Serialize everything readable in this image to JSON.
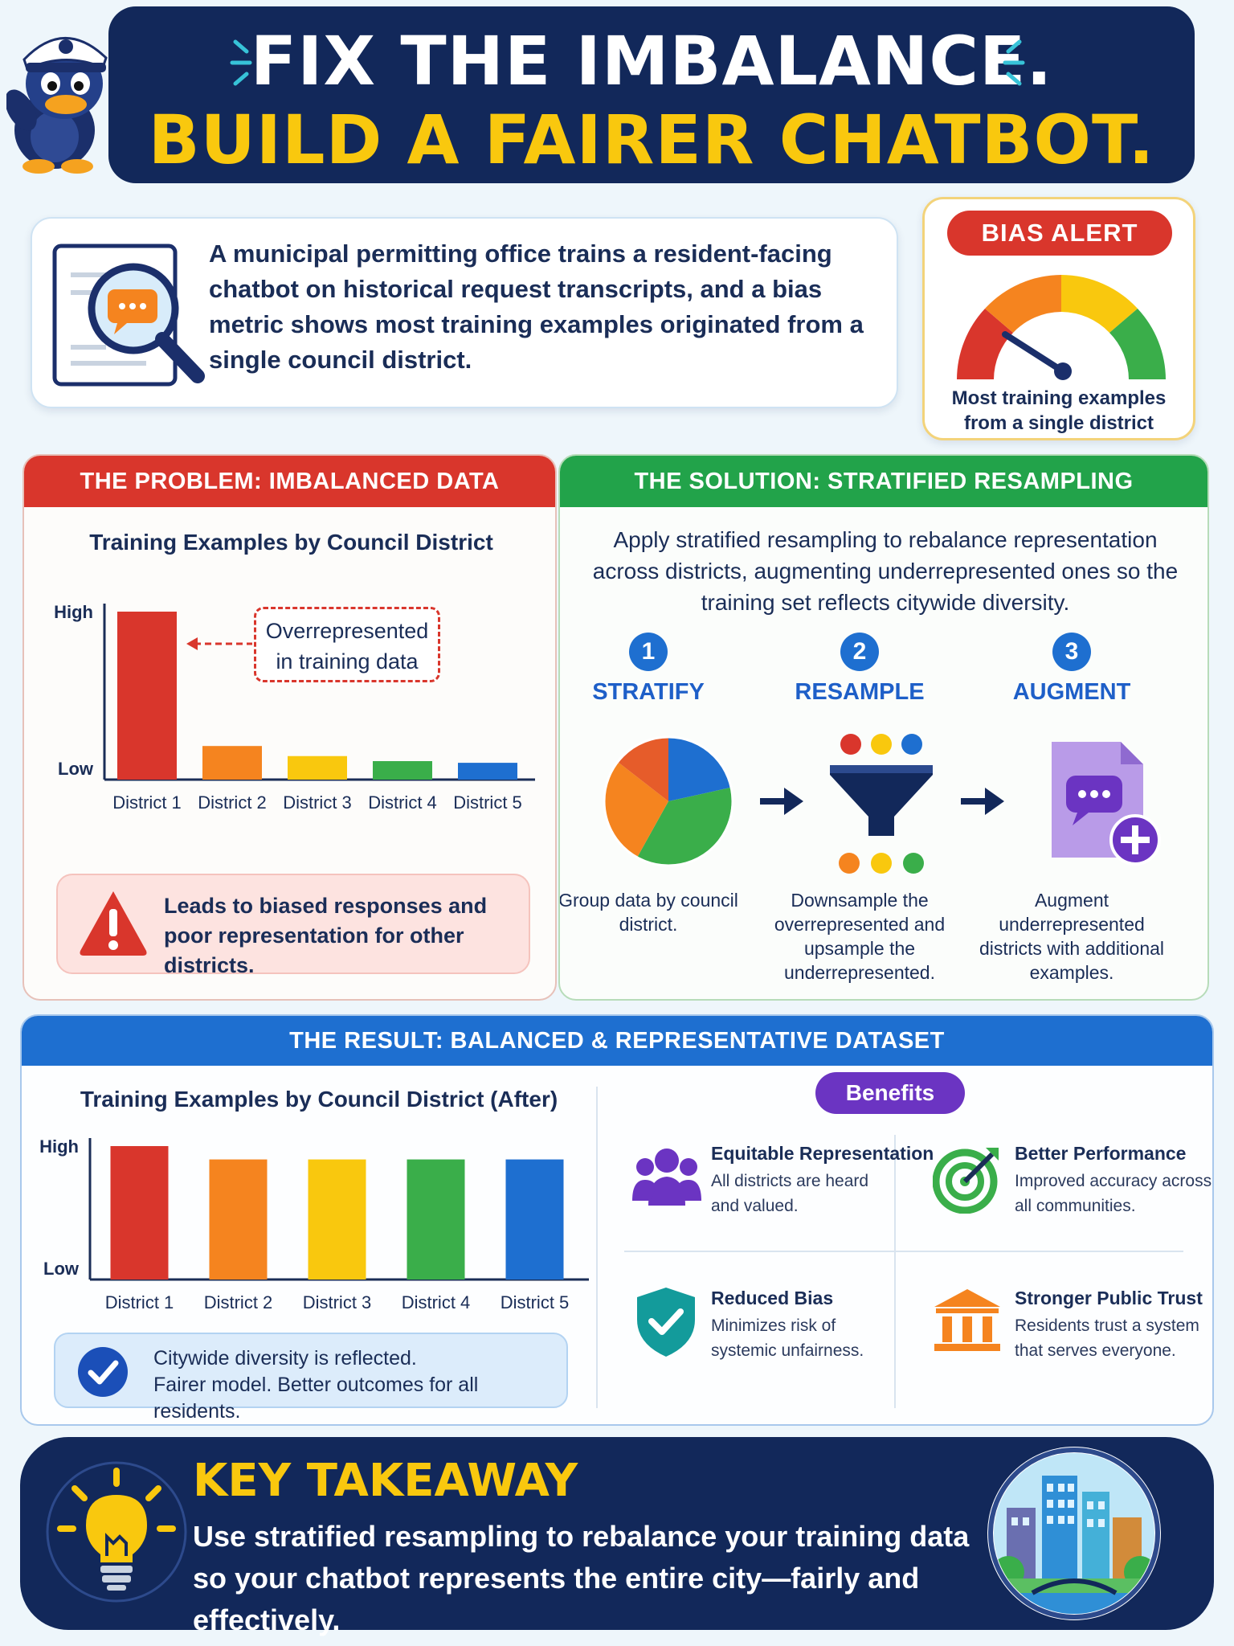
{
  "header": {
    "line1": "FIX THE IMBALANCE.",
    "line2": "BUILD A FAIRER CHATBOT."
  },
  "intro": {
    "text": "A municipal permitting office trains a resident-facing chatbot on historical request transcripts, and a bias metric shows most training examples originated from a single council district."
  },
  "alert": {
    "badge": "BIAS ALERT",
    "caption_line1": "Most training examples",
    "caption_line2": "from a single district"
  },
  "problem": {
    "header": "THE PROBLEM: IMBALANCED DATA",
    "callout_line1": "Overrepresented",
    "callout_line2": "in training data",
    "warning": "Leads to biased responses and poor representation for other districts."
  },
  "solution": {
    "header": "THE SOLUTION: STRATIFIED RESAMPLING",
    "intro": "Apply stratified resampling to rebalance representation across districts, augmenting underrepresented ones so the training set reflects citywide diversity.",
    "steps": [
      {
        "num": "1",
        "label": "STRATIFY",
        "desc": "Group data by council district."
      },
      {
        "num": "2",
        "label": "RESAMPLE",
        "desc": "Downsample the overrepresented and upsample the underrepresented."
      },
      {
        "num": "3",
        "label": "AUGMENT",
        "desc": "Augment underrepresented districts with additional examples."
      }
    ]
  },
  "result": {
    "header": "THE RESULT: BALANCED & REPRESENTATIVE DATASET",
    "ok_line1": "Citywide diversity is reflected.",
    "ok_line2": "Fairer model. Better outcomes for all residents.",
    "benefits_label": "Benefits",
    "benefits": [
      {
        "title": "Equitable Representation",
        "desc_line1": "All districts are heard",
        "desc_line2": "and valued.",
        "icon": "people-icon"
      },
      {
        "title": "Better Performance",
        "desc_line1": "Improved accuracy across",
        "desc_line2": "all communities.",
        "icon": "target-icon"
      },
      {
        "title": "Reduced Bias",
        "desc_line1": "Minimizes risk of",
        "desc_line2": "systemic unfairness.",
        "icon": "shield-check-icon"
      },
      {
        "title": "Stronger Public Trust",
        "desc_line1": "Residents trust a system",
        "desc_line2": "that serves everyone.",
        "icon": "institution-icon"
      }
    ]
  },
  "takeaway": {
    "title": "KEY TAKEAWAY",
    "line1": "Use stratified resampling to rebalance your training data",
    "line2": "so your chatbot represents the entire city—fairly and effectively."
  },
  "chart_data": [
    {
      "type": "bar",
      "title": "Training Examples by Council District",
      "categories": [
        "District 1",
        "District 2",
        "District 3",
        "District 4",
        "District 5"
      ],
      "values": [
        1.0,
        0.2,
        0.14,
        0.11,
        0.1
      ],
      "y_tick_labels": [
        "Low",
        "High"
      ],
      "colors": [
        "#d9362c",
        "#f5841f",
        "#f9c80e",
        "#3aae4a",
        "#1e6fd0"
      ],
      "ylim": [
        0,
        1
      ],
      "grid": false
    },
    {
      "type": "bar",
      "title": "Training Examples by Council District (After)",
      "categories": [
        "District 1",
        "District 2",
        "District 3",
        "District 4",
        "District 5"
      ],
      "values": [
        1.0,
        0.9,
        0.9,
        0.9,
        0.9
      ],
      "y_tick_labels": [
        "Low",
        "High"
      ],
      "colors": [
        "#d9362c",
        "#f5841f",
        "#f9c80e",
        "#3aae4a",
        "#1e6fd0"
      ],
      "ylim": [
        0,
        1
      ],
      "grid": false
    }
  ]
}
